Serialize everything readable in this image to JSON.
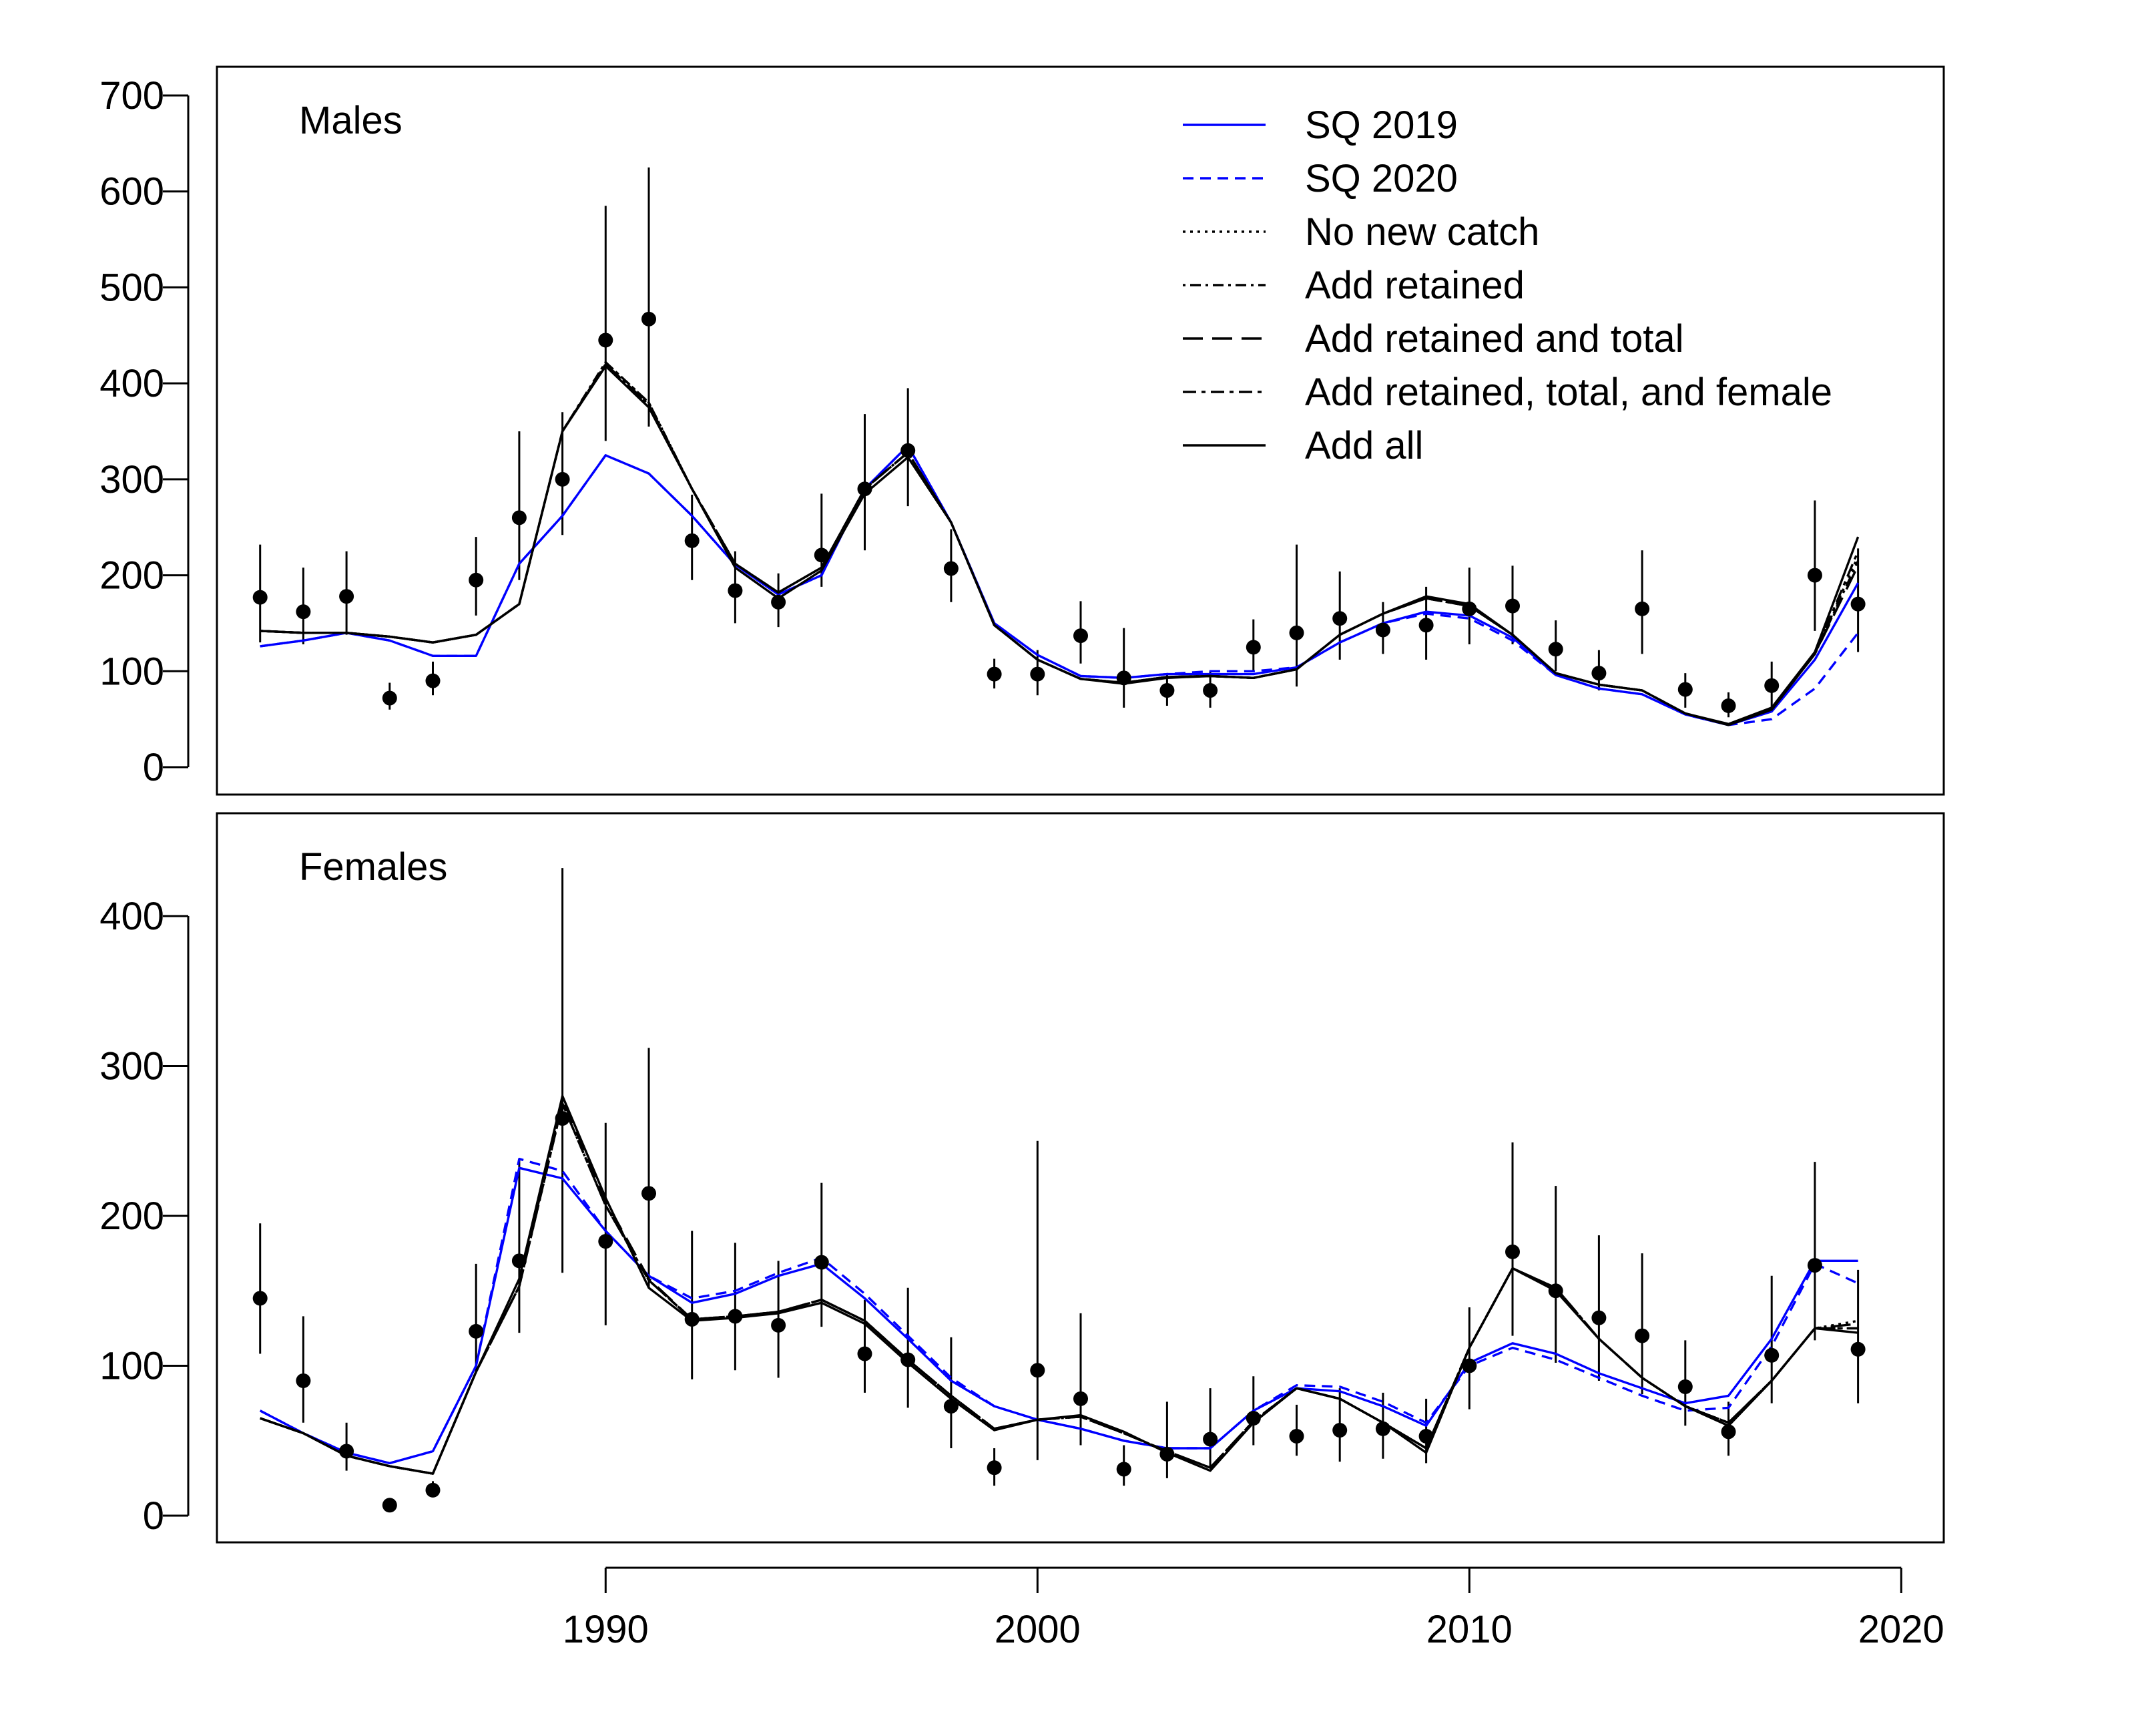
{
  "chart_data": {
    "type": "line",
    "panels": [
      {
        "label": "Males",
        "ylim": [
          0,
          700
        ],
        "yticks": [
          0,
          100,
          200,
          300,
          400,
          500,
          600,
          700
        ],
        "observed": {
          "years": [
            1982,
            1983,
            1984,
            1985,
            1986,
            1987,
            1988,
            1989,
            1990,
            1991,
            1992,
            1993,
            1994,
            1995,
            1996,
            1997,
            1998,
            1999,
            2000,
            2001,
            2002,
            2003,
            2004,
            2005,
            2006,
            2007,
            2008,
            2009,
            2010,
            2011,
            2012,
            2013,
            2014,
            2015,
            2016,
            2017,
            2018,
            2019
          ],
          "values": [
            177,
            162,
            178,
            72,
            90,
            195,
            260,
            300,
            445,
            467,
            236,
            184,
            172,
            221,
            290,
            330,
            207,
            97,
            97,
            137,
            93,
            80,
            80,
            125,
            140,
            155,
            143,
            148,
            165,
            168,
            123,
            98,
            165,
            81,
            64,
            85,
            200,
            170
          ],
          "lower": [
            130,
            128,
            138,
            60,
            75,
            158,
            195,
            242,
            340,
            355,
            195,
            150,
            146,
            188,
            226,
            272,
            172,
            82,
            75,
            108,
            62,
            64,
            62,
            100,
            84,
            112,
            118,
            112,
            128,
            128,
            100,
            80,
            118,
            62,
            52,
            60,
            142,
            120
          ],
          "upper": [
            232,
            208,
            225,
            88,
            110,
            240,
            350,
            370,
            585,
            625,
            284,
            225,
            202,
            285,
            368,
            395,
            248,
            113,
            122,
            173,
            145,
            98,
            100,
            154,
            232,
            204,
            172,
            188,
            208,
            210,
            153,
            122,
            226,
            98,
            78,
            110,
            278,
            228
          ]
        },
        "series": [
          {
            "name": "SQ 2019",
            "color": "#0000ff",
            "dash": "solid",
            "values": [
              126,
              132,
              140,
              132,
              116,
              116,
              212,
              262,
              325,
              306,
              262,
              211,
              180,
              200,
              290,
              335,
              255,
              150,
              117,
              95,
              93,
              97,
              97,
              97,
              104,
              130,
              150,
              162,
              158,
              135,
              96,
              82,
              76,
              55,
              44,
              58,
              112,
              192
            ]
          },
          {
            "name": "SQ 2020",
            "color": "#0000ff",
            "dash": "dashed",
            "values": [
              126,
              132,
              140,
              132,
              116,
              116,
              212,
              262,
              325,
              306,
              262,
              211,
              180,
              200,
              290,
              335,
              255,
              150,
              117,
              95,
              93,
              97,
              100,
              100,
              104,
              130,
              150,
              160,
              155,
              132,
              96,
              82,
              76,
              55,
              44,
              50,
              82,
              140
            ]
          },
          {
            "name": "No new catch",
            "color": "#000000",
            "dash": "dotted",
            "values": [
              142,
              140,
              140,
              136,
              130,
              138,
              170,
              350,
              422,
              380,
              290,
              212,
              182,
              208,
              290,
              328,
              255,
              148,
              112,
              92,
              88,
              94,
              95,
              93,
              102,
              138,
              160,
              176,
              168,
              138,
              98,
              86,
              80,
              56,
              44,
              60,
              118,
              220
            ]
          },
          {
            "name": "Add retained",
            "color": "#000000",
            "dash": "dashdot",
            "values": [
              142,
              140,
              140,
              136,
              130,
              138,
              170,
              350,
              422,
              380,
              290,
              212,
              182,
              208,
              290,
              328,
              255,
              148,
              112,
              92,
              88,
              94,
              95,
              93,
              102,
              138,
              160,
              176,
              168,
              138,
              98,
              86,
              80,
              56,
              44,
              60,
              118,
              215
            ]
          },
          {
            "name": "Add retained and total",
            "color": "#000000",
            "dash": "longdash",
            "values": [
              142,
              140,
              140,
              136,
              130,
              138,
              170,
              350,
              420,
              378,
              290,
              212,
              182,
              208,
              290,
              328,
              255,
              148,
              112,
              92,
              88,
              94,
              95,
              93,
              102,
              138,
              160,
              176,
              168,
              138,
              98,
              86,
              80,
              56,
              44,
              60,
              118,
              210
            ]
          },
          {
            "name": "Add retained, total, and female",
            "color": "#000000",
            "dash": "twodash",
            "values": [
              142,
              140,
              140,
              136,
              130,
              138,
              170,
              350,
              420,
              378,
              290,
              212,
              182,
              208,
              290,
              328,
              255,
              148,
              112,
              92,
              88,
              94,
              95,
              93,
              102,
              138,
              160,
              176,
              168,
              138,
              98,
              86,
              80,
              56,
              44,
              60,
              118,
              225
            ]
          },
          {
            "name": "Add all",
            "color": "#000000",
            "dash": "solid",
            "values": [
              142,
              140,
              140,
              136,
              130,
              138,
              170,
              350,
              418,
              375,
              290,
              208,
              176,
              205,
              285,
              323,
              255,
              148,
              112,
              92,
              87,
              93,
              95,
              93,
              102,
              138,
              160,
              178,
              170,
              138,
              98,
              86,
              80,
              56,
              45,
              62,
              120,
              240
            ]
          }
        ]
      },
      {
        "label": "Females",
        "ylim": [
          0,
          450
        ],
        "yticks": [
          0,
          100,
          200,
          300,
          400
        ],
        "observed": {
          "years": [
            1982,
            1983,
            1984,
            1985,
            1986,
            1987,
            1988,
            1989,
            1990,
            1991,
            1992,
            1993,
            1994,
            1995,
            1996,
            1997,
            1998,
            1999,
            2000,
            2001,
            2002,
            2003,
            2004,
            2005,
            2006,
            2007,
            2008,
            2009,
            2010,
            2011,
            2012,
            2013,
            2014,
            2015,
            2016,
            2017,
            2018,
            2019
          ],
          "values": [
            145,
            90,
            43,
            7,
            17,
            123,
            170,
            265,
            183,
            215,
            131,
            133,
            127,
            169,
            108,
            104,
            73,
            32,
            97,
            78,
            31,
            41,
            51,
            65,
            53,
            57,
            58,
            53,
            100,
            176,
            150,
            132,
            120,
            86,
            56,
            107,
            167,
            111
          ],
          "lower": [
            108,
            62,
            30,
            5,
            13,
            95,
            122,
            162,
            127,
            152,
            91,
            97,
            92,
            126,
            82,
            72,
            45,
            20,
            37,
            47,
            20,
            25,
            32,
            47,
            40,
            36,
            38,
            35,
            71,
            120,
            102,
            90,
            81,
            60,
            40,
            75,
            117,
            75
          ],
          "upper": [
            195,
            133,
            62,
            9,
            23,
            168,
            238,
            432,
            262,
            312,
            190,
            182,
            170,
            222,
            144,
            152,
            119,
            45,
            250,
            135,
            47,
            76,
            85,
            93,
            74,
            85,
            82,
            78,
            139,
            249,
            220,
            187,
            175,
            117,
            76,
            160,
            236,
            164
          ]
        },
        "series": [
          {
            "name": "SQ 2019",
            "color": "#0000ff",
            "dash": "solid",
            "values": [
              70,
              55,
              42,
              35,
              43,
              100,
              232,
              225,
              190,
              160,
              142,
              148,
              160,
              168,
              145,
              118,
              90,
              73,
              64,
              58,
              50,
              45,
              45,
              70,
              85,
              83,
              73,
              60,
              102,
              115,
              108,
              95,
              85,
              75,
              80,
              118,
              170,
              170
            ]
          },
          {
            "name": "SQ 2020",
            "color": "#0000ff",
            "dash": "dashed",
            "values": [
              70,
              55,
              42,
              35,
              43,
              100,
              238,
              230,
              190,
              160,
              145,
              150,
              162,
              172,
              148,
              120,
              92,
              73,
              64,
              58,
              50,
              45,
              45,
              70,
              87,
              86,
              76,
              62,
              100,
              112,
              104,
              92,
              80,
              70,
              72,
              113,
              168,
              155
            ]
          },
          {
            "name": "No new catch",
            "color": "#000000",
            "dash": "dotted",
            "values": [
              65,
              55,
              40,
              33,
              28,
              96,
              153,
              275,
              207,
              157,
              131,
              133,
              136,
              144,
              130,
              104,
              80,
              58,
              64,
              66,
              55,
              43,
              32,
              63,
              85,
              78,
              62,
              45,
              112,
              165,
              152,
              118,
              92,
              73,
              62,
              90,
              125,
              130
            ]
          },
          {
            "name": "Add retained",
            "color": "#000000",
            "dash": "dashdot",
            "values": [
              65,
              55,
              40,
              33,
              28,
              96,
              153,
              275,
              207,
              157,
              131,
              133,
              136,
              144,
              130,
              104,
              80,
              58,
              64,
              66,
              55,
              43,
              32,
              63,
              85,
              78,
              62,
              45,
              112,
              165,
              152,
              118,
              92,
              73,
              62,
              90,
              125,
              125
            ]
          },
          {
            "name": "Add retained and total",
            "color": "#000000",
            "dash": "longdash",
            "values": [
              65,
              55,
              40,
              33,
              28,
              96,
              153,
              278,
              210,
              158,
              131,
              133,
              136,
              144,
              130,
              104,
              80,
              58,
              64,
              66,
              55,
              43,
              32,
              63,
              85,
              78,
              62,
              45,
              112,
              165,
              152,
              118,
              92,
              73,
              62,
              90,
              125,
              128
            ]
          },
          {
            "name": "Add retained, total, and female",
            "color": "#000000",
            "dash": "twodash",
            "values": [
              65,
              55,
              40,
              33,
              28,
              96,
              153,
              275,
              207,
              157,
              131,
              133,
              136,
              144,
              130,
              104,
              80,
              58,
              64,
              66,
              55,
              43,
              32,
              63,
              85,
              78,
              62,
              45,
              112,
              165,
              152,
              118,
              92,
              73,
              62,
              90,
              125,
              125
            ]
          },
          {
            "name": "Add all",
            "color": "#000000",
            "dash": "solid",
            "values": [
              65,
              55,
              40,
              33,
              28,
              96,
              158,
              280,
              212,
              152,
              130,
              132,
              135,
              142,
              128,
              102,
              78,
              57,
              64,
              67,
              56,
              42,
              30,
              62,
              85,
              78,
              62,
              42,
              112,
              165,
              150,
              118,
              92,
              73,
              60,
              90,
              125,
              122
            ]
          }
        ]
      }
    ],
    "x": [
      1982,
      1983,
      1984,
      1985,
      1986,
      1987,
      1988,
      1989,
      1990,
      1991,
      1992,
      1993,
      1994,
      1995,
      1996,
      1997,
      1998,
      1999,
      2000,
      2001,
      2002,
      2003,
      2004,
      2005,
      2006,
      2007,
      2008,
      2009,
      2010,
      2011,
      2012,
      2013,
      2014,
      2015,
      2016,
      2017,
      2018,
      2019
    ],
    "xticks": [
      1990,
      2000,
      2010,
      2020
    ],
    "xlim": [
      1981,
      2021
    ],
    "legend_placement": "top-right of upper panel",
    "grid": false
  }
}
